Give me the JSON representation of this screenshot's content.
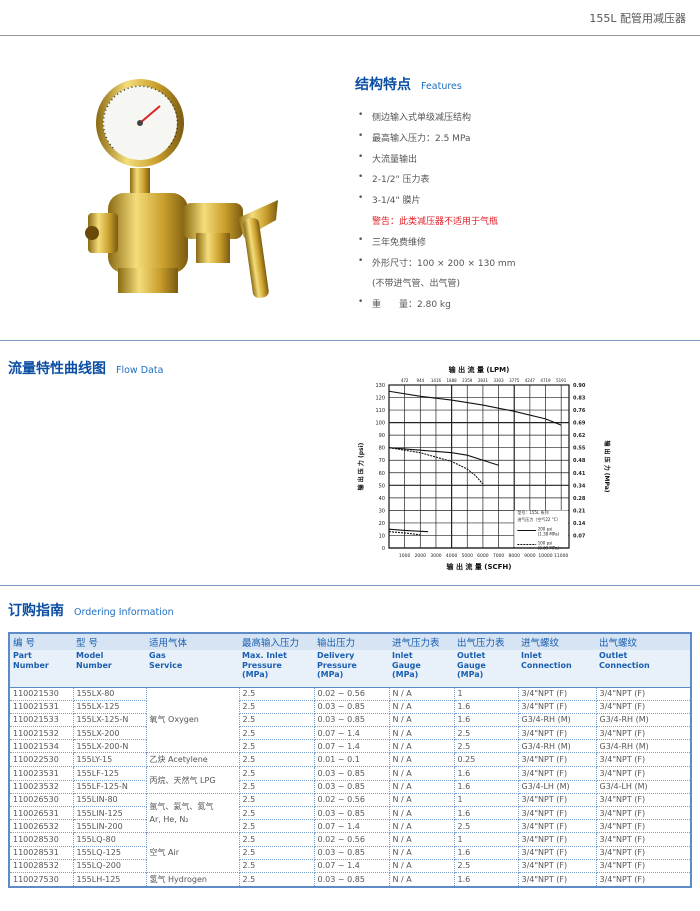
{
  "header": {
    "title": "155L 配管用减压器"
  },
  "features": {
    "title_zh": "结构特点",
    "title_en": "Features",
    "items": [
      {
        "text": "侧边输入式单级减压结构",
        "bullet": true
      },
      {
        "text": "最高输入压力：2.5 MPa",
        "bullet": true
      },
      {
        "text": "大流量输出",
        "bullet": true
      },
      {
        "text": "2-1/2\" 压力表",
        "bullet": true
      },
      {
        "text": "3-1/4\" 膜片",
        "bullet": true
      },
      {
        "text": "警告：此类减压器不适用于气瓶",
        "bullet": false,
        "warning": true
      },
      {
        "text": "三年免费维修",
        "bullet": true
      },
      {
        "text": "外形尺寸：100 × 200 × 130 mm",
        "bullet": true
      },
      {
        "text": "(不带进气管、出气管)",
        "bullet": false
      },
      {
        "text": "重　　量：2.80 kg",
        "bullet": true
      }
    ]
  },
  "flow": {
    "title_zh": "流量特性曲线图",
    "title_en": "Flow Data"
  },
  "chart_data": {
    "type": "line",
    "title": "输 出 流 量 (LPM)",
    "xlabel": "输 出 流 量 (SCFH)",
    "ylabel": "输 出 压 力 (psi)",
    "ylabel_right": "输 出 压 力 (MPa)",
    "xlim": [
      0,
      11500
    ],
    "ylim": [
      0,
      130
    ],
    "x_ticks": [
      1000,
      2000,
      3000,
      4000,
      5000,
      6000,
      7000,
      8000,
      9000,
      10000,
      11000
    ],
    "x_top_ticks": [
      "472",
      "944",
      "1416",
      "1888",
      "2359",
      "2831",
      "3303",
      "3775",
      "4247",
      "4719",
      "5191"
    ],
    "y_ticks": [
      0,
      10,
      20,
      30,
      40,
      50,
      60,
      70,
      80,
      90,
      100,
      110,
      120,
      130
    ],
    "y_right_ticks": [
      "0.07",
      "0.14",
      "0.21",
      "0.28",
      "0.34",
      "0.41",
      "0.48",
      "0.55",
      "0.62",
      "0.69",
      "0.76",
      "0.83",
      "0.90"
    ],
    "grid": true,
    "legend": {
      "placement": "bottom-right",
      "lines": [
        "型号：155L 系列",
        "进气压力（空气22 °C）"
      ],
      "entries": [
        {
          "label": "200 psi",
          "sub": "(1.38 MPa)",
          "style": "solid"
        },
        {
          "label": "100 psi",
          "sub": "(0.69 MPa)",
          "style": "dashed"
        }
      ]
    },
    "series": [
      {
        "style": "solid",
        "x": [
          0,
          2000,
          4000,
          6000,
          8000,
          10000,
          11000
        ],
        "y": [
          125,
          121,
          118,
          114,
          109,
          103,
          98
        ]
      },
      {
        "style": "solid",
        "x": [
          0,
          2000,
          4000,
          5000,
          6000,
          7000
        ],
        "y": [
          80,
          78,
          76,
          74,
          70,
          66
        ]
      },
      {
        "style": "dashed",
        "x": [
          0,
          2000,
          4000,
          5000,
          5500,
          6000
        ],
        "y": [
          80,
          76,
          69,
          63,
          58,
          51
        ]
      },
      {
        "style": "solid",
        "x": [
          0,
          1000,
          2500
        ],
        "y": [
          15,
          14,
          13
        ]
      },
      {
        "style": "dashed",
        "x": [
          0,
          1000,
          2000
        ],
        "y": [
          13,
          12,
          10.5
        ]
      }
    ]
  },
  "ordering": {
    "title_zh": "订购指南",
    "title_en": "Ordering Information",
    "headers_zh": [
      "编 号",
      "型 号",
      "适用气体",
      "最高输入压力",
      "输出压力",
      "进气压力表",
      "出气压力表",
      "进气螺纹",
      "出气螺纹"
    ],
    "headers_en": [
      "Part\nNumber",
      "Model\nNumber",
      "Gas\nService",
      "Max. Inlet\nPressure\n(MPa)",
      "Delivery\nPressure\n(MPa)",
      "Inlet\nGauge\n(MPa)",
      "Outlet\nGauge\n(MPa)",
      "Inlet\nConnection",
      "Outlet\nConnection"
    ],
    "gas_groups": [
      {
        "label": "氧气 Oxygen",
        "rows": 5
      },
      {
        "label": "乙炔 Acetylene",
        "rows": 1
      },
      {
        "label": "丙烷、天然气 LPG",
        "rows": 2
      },
      {
        "label": "氩气、氦气、氮气\nAr, He, N₂",
        "rows": 3
      },
      {
        "label": "空气 Air",
        "rows": 3
      },
      {
        "label": "氢气 Hydrogen",
        "rows": 1
      }
    ],
    "rows": [
      [
        "110021530",
        "155LX-80",
        "2.5",
        "0.02 ~ 0.56",
        "N / A",
        "1",
        "3/4\"NPT (F)",
        "3/4\"NPT (F)"
      ],
      [
        "110021531",
        "155LX-125",
        "2.5",
        "0.03 ~ 0.85",
        "N / A",
        "1.6",
        "3/4\"NPT (F)",
        "3/4\"NPT (F)"
      ],
      [
        "110021533",
        "155LX-125-N",
        "2.5",
        "0.03 ~ 0.85",
        "N / A",
        "1.6",
        "G3/4-RH (M)",
        "G3/4-RH (M)"
      ],
      [
        "110021532",
        "155LX-200",
        "2.5",
        "0.07 ~ 1.4",
        "N / A",
        "2.5",
        "3/4\"NPT (F)",
        "3/4\"NPT (F)"
      ],
      [
        "110021534",
        "155LX-200-N",
        "2.5",
        "0.07 ~ 1.4",
        "N / A",
        "2.5",
        "G3/4-RH (M)",
        "G3/4-RH (M)"
      ],
      [
        "110022530",
        "155LY-15",
        "2.5",
        "0.01 ~ 0.1",
        "N / A",
        "0.25",
        "3/4\"NPT (F)",
        "3/4\"NPT (F)"
      ],
      [
        "110023531",
        "155LF-125",
        "2.5",
        "0.03 ~ 0.85",
        "N / A",
        "1.6",
        "3/4\"NPT (F)",
        "3/4\"NPT (F)"
      ],
      [
        "110023532",
        "155LF-125-N",
        "2.5",
        "0.03 ~ 0.85",
        "N / A",
        "1.6",
        "G3/4-LH (M)",
        "G3/4-LH (M)"
      ],
      [
        "110026530",
        "155LIN-80",
        "2.5",
        "0.02 ~ 0.56",
        "N / A",
        "1",
        "3/4\"NPT (F)",
        "3/4\"NPT (F)"
      ],
      [
        "110026531",
        "155LIN-125",
        "2.5",
        "0.03 ~ 0.85",
        "N / A",
        "1.6",
        "3/4\"NPT (F)",
        "3/4\"NPT (F)"
      ],
      [
        "110026532",
        "155LIN-200",
        "2.5",
        "0.07 ~ 1.4",
        "N / A",
        "2.5",
        "3/4\"NPT (F)",
        "3/4\"NPT (F)"
      ],
      [
        "110028530",
        "155LQ-80",
        "2.5",
        "0.02 ~ 0.56",
        "N / A",
        "1",
        "3/4\"NPT (F)",
        "3/4\"NPT (F)"
      ],
      [
        "110028531",
        "155LQ-125",
        "2.5",
        "0.03 ~ 0.85",
        "N / A",
        "1.6",
        "3/4\"NPT (F)",
        "3/4\"NPT (F)"
      ],
      [
        "110028532",
        "155LQ-200",
        "2.5",
        "0.07 ~ 1.4",
        "N / A",
        "2.5",
        "3/4\"NPT (F)",
        "3/4\"NPT (F)"
      ],
      [
        "110027530",
        "155LH-125",
        "2.5",
        "0.03 ~ 0.85",
        "N / A",
        "1.6",
        "3/4\"NPT (F)",
        "3/4\"NPT (F)"
      ]
    ]
  }
}
